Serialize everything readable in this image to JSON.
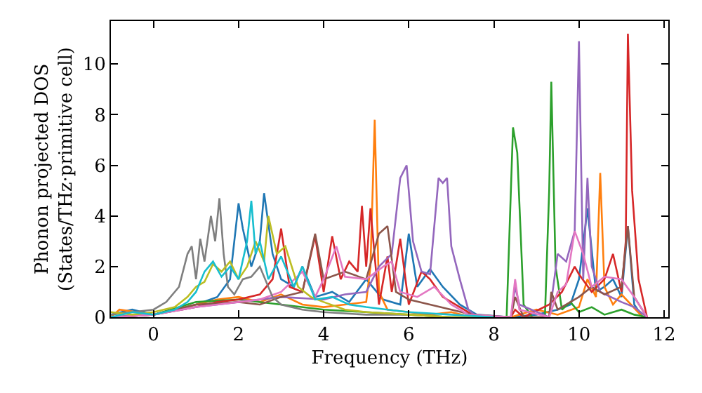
{
  "chart_data": {
    "type": "line",
    "xlabel": "Frequency (THz)",
    "ylabel": "Phonon projected DOS\n(States/THz·primitive cell)",
    "xlim": [
      -1,
      12.1
    ],
    "ylim": [
      0,
      11.7
    ],
    "xticks": [
      0,
      2,
      4,
      6,
      8,
      10,
      12
    ],
    "yticks": [
      0,
      2,
      4,
      6,
      8,
      10
    ],
    "marker": "none",
    "line_style": "solid",
    "series": [
      {
        "color": "#1f77b4",
        "x": [
          -1,
          -0.5,
          0,
          0.5,
          1,
          1.5,
          1.8,
          2.0,
          2.1,
          2.3,
          2.5,
          2.6,
          2.8,
          3.0,
          3.3,
          3.5,
          3.8,
          4.2,
          4.6,
          5.0,
          5.4,
          5.8,
          6.0,
          6.2,
          6.5,
          6.8,
          7.2,
          7.6,
          8.4,
          9.0,
          9.5,
          9.8,
          10.0,
          10.2,
          10.4,
          10.6,
          10.8,
          11.0,
          11.15,
          11.3,
          11.5
        ],
        "values": [
          0.1,
          0.3,
          0.1,
          0.3,
          0.5,
          0.8,
          1.5,
          4.5,
          3.5,
          2.0,
          3.0,
          4.9,
          2.5,
          1.5,
          1.2,
          2.0,
          0.8,
          1.0,
          0.6,
          1.5,
          0.7,
          0.5,
          3.3,
          1.2,
          1.9,
          1.2,
          0.5,
          0.1,
          0,
          0.1,
          0.3,
          0.5,
          1.5,
          4.3,
          1.0,
          1.2,
          1.5,
          0.8,
          3.6,
          0.5,
          0
        ]
      },
      {
        "color": "#ff7f0e",
        "x": [
          -1,
          -0.8,
          0,
          1,
          1.5,
          2.0,
          2.5,
          3.0,
          3.5,
          4.0,
          4.5,
          5.0,
          5.1,
          5.2,
          5.3,
          5.5,
          6.0,
          6.5,
          7.0,
          7.5,
          8.4,
          9.0,
          9.5,
          10.0,
          10.2,
          10.4,
          10.5,
          10.6,
          10.8,
          11.0,
          11.5
        ],
        "values": [
          0,
          0.3,
          0.1,
          0.5,
          0.7,
          0.8,
          0.6,
          0.9,
          0.5,
          0.4,
          0.5,
          0.6,
          2.0,
          7.8,
          1.0,
          0.3,
          0.2,
          0.1,
          0.2,
          0,
          0,
          0.3,
          0.1,
          0.4,
          1.5,
          0.8,
          5.7,
          1.2,
          0.5,
          0.9,
          0
        ]
      },
      {
        "color": "#2ca02c",
        "x": [
          -1,
          0,
          1,
          2,
          3,
          4,
          5,
          6,
          7,
          8.3,
          8.45,
          8.55,
          8.7,
          8.9,
          9.2,
          9.3,
          9.35,
          9.45,
          9.6,
          9.8,
          10.0,
          10.3,
          10.6,
          11.0,
          11.3,
          11.6
        ],
        "values": [
          0,
          0.1,
          0.6,
          0.7,
          0.5,
          0.3,
          0.2,
          0.1,
          0,
          0,
          7.5,
          6.5,
          0.5,
          0,
          0,
          5.0,
          9.3,
          2.0,
          0.3,
          0.6,
          0.2,
          0.4,
          0.1,
          0.3,
          0.1,
          0
        ]
      },
      {
        "color": "#d62728",
        "x": [
          -1,
          0,
          1,
          1.5,
          2,
          2.5,
          2.8,
          3.0,
          3.2,
          3.5,
          3.8,
          4.0,
          4.2,
          4.4,
          4.6,
          4.8,
          4.9,
          5.0,
          5.1,
          5.3,
          5.5,
          5.6,
          5.8,
          6.0,
          6.3,
          6.5,
          6.8,
          7.2,
          7.6,
          8.4,
          8.5,
          8.7,
          9.3,
          9.6,
          9.9,
          10.0,
          10.3,
          10.6,
          10.8,
          11.0,
          11.1,
          11.15,
          11.25,
          11.4,
          11.6
        ],
        "values": [
          0,
          0.1,
          0.4,
          0.6,
          0.7,
          0.9,
          1.5,
          3.5,
          1.2,
          1.0,
          3.2,
          1.0,
          3.2,
          1.5,
          2.2,
          1.8,
          4.4,
          2.0,
          4.3,
          0.5,
          2.4,
          1.0,
          3.1,
          0.5,
          1.8,
          1.5,
          0.8,
          0.4,
          0,
          0,
          0.3,
          0,
          0.5,
          1.0,
          2.0,
          1.7,
          1.0,
          1.5,
          2.5,
          1.0,
          3.0,
          11.2,
          5.0,
          1.5,
          0
        ]
      },
      {
        "color": "#9467bd",
        "x": [
          -1,
          0,
          1,
          2,
          3,
          4,
          4.5,
          5.0,
          5.3,
          5.6,
          5.8,
          5.95,
          6.1,
          6.3,
          6.5,
          6.7,
          6.8,
          6.9,
          7.0,
          7.2,
          7.4,
          7.6,
          8.4,
          8.5,
          8.6,
          9.3,
          9.5,
          9.7,
          9.9,
          10.0,
          10.1,
          10.2,
          10.3,
          10.5,
          11.0,
          11.3,
          11.6
        ],
        "values": [
          0,
          0.1,
          0.4,
          0.6,
          0.8,
          0.7,
          0.9,
          1.0,
          2.0,
          2.5,
          5.5,
          6.0,
          3.0,
          1.8,
          1.7,
          5.5,
          5.3,
          5.5,
          2.8,
          1.5,
          0.3,
          0,
          0,
          1.2,
          0.5,
          0,
          2.5,
          2.2,
          3.4,
          10.9,
          1.5,
          5.5,
          2.0,
          1.0,
          0.6,
          0.4,
          0
        ]
      },
      {
        "color": "#8c564b",
        "x": [
          -1,
          0,
          1,
          2,
          2.5,
          3.0,
          3.5,
          3.8,
          4.0,
          4.5,
          5.0,
          5.3,
          5.5,
          5.7,
          6.0,
          6.5,
          7.0,
          7.5,
          8.4,
          8.5,
          8.7,
          9.3,
          9.35,
          9.5,
          10.0,
          10.3,
          10.6,
          11.0,
          11.15,
          11.3,
          11.6
        ],
        "values": [
          0,
          0.1,
          0.5,
          0.6,
          0.5,
          0.8,
          1.0,
          3.3,
          1.5,
          1.8,
          1.5,
          3.3,
          3.6,
          1.0,
          0.7,
          0.5,
          0.3,
          0.1,
          0,
          0.8,
          0,
          0,
          1.0,
          0.3,
          0.8,
          1.2,
          0.9,
          1.2,
          3.6,
          0.8,
          0
        ]
      },
      {
        "color": "#e377c2",
        "x": [
          -1,
          0,
          1,
          1.5,
          2,
          2.5,
          3.0,
          3.5,
          3.8,
          4.0,
          4.3,
          4.5,
          5.0,
          5.4,
          5.6,
          5.8,
          6.2,
          6.6,
          7.0,
          7.4,
          8.4,
          8.5,
          8.6,
          9.3,
          9.5,
          9.7,
          9.9,
          10.1,
          10.3,
          10.6,
          11.0,
          11.3,
          11.6
        ],
        "values": [
          0,
          0.1,
          0.4,
          0.5,
          0.6,
          0.7,
          1.0,
          1.8,
          0.8,
          1.5,
          2.8,
          1.6,
          1.5,
          2.0,
          2.2,
          1.0,
          0.8,
          1.2,
          0.5,
          0.1,
          0,
          1.5,
          0.3,
          0,
          1.0,
          1.3,
          3.4,
          2.5,
          1.2,
          1.6,
          1.5,
          0.8,
          0
        ]
      },
      {
        "color": "#7f7f7f",
        "x": [
          -1,
          -0.5,
          0,
          0.3,
          0.6,
          0.8,
          0.9,
          1.0,
          1.1,
          1.2,
          1.35,
          1.45,
          1.55,
          1.65,
          1.75,
          1.9,
          2.1,
          2.3,
          2.5,
          2.8,
          3.0,
          3.5,
          4.0,
          5.0,
          6.0,
          7.0,
          8.0
        ],
        "values": [
          0.1,
          0.2,
          0.3,
          0.6,
          1.2,
          2.5,
          2.8,
          1.5,
          3.1,
          2.2,
          4.0,
          3.0,
          4.7,
          2.5,
          1.2,
          0.9,
          1.5,
          1.6,
          2.0,
          0.8,
          0.5,
          0.3,
          0.2,
          0.1,
          0.1,
          0,
          0
        ]
      },
      {
        "color": "#bcbd22",
        "x": [
          -1,
          -0.5,
          0,
          0.5,
          0.8,
          1.0,
          1.2,
          1.4,
          1.6,
          1.8,
          2.0,
          2.2,
          2.4,
          2.6,
          2.7,
          2.9,
          3.1,
          3.4,
          3.7,
          4.0,
          4.5,
          5,
          6,
          7,
          8
        ],
        "values": [
          0.2,
          0.1,
          0.2,
          0.4,
          0.8,
          1.2,
          1.4,
          2.1,
          1.8,
          2.2,
          1.5,
          2.0,
          3.0,
          2.2,
          4.0,
          2.5,
          2.8,
          1.2,
          0.8,
          0.6,
          0.3,
          0.2,
          0.1,
          0,
          0
        ]
      },
      {
        "color": "#17becf",
        "x": [
          -1,
          -0.5,
          0,
          0.5,
          0.8,
          1.0,
          1.2,
          1.4,
          1.6,
          1.8,
          2.0,
          2.2,
          2.3,
          2.4,
          2.5,
          2.7,
          3.0,
          3.3,
          3.5,
          3.8,
          4.2,
          4.6,
          5.0,
          5.5,
          6,
          7,
          8
        ],
        "values": [
          0,
          0.2,
          0.1,
          0.3,
          0.6,
          1.0,
          1.8,
          2.2,
          1.6,
          2.0,
          1.5,
          3.0,
          4.6,
          2.5,
          3.0,
          1.5,
          2.4,
          1.2,
          2.0,
          0.7,
          0.8,
          0.5,
          0.4,
          0.3,
          0.2,
          0.1,
          0
        ]
      }
    ]
  }
}
